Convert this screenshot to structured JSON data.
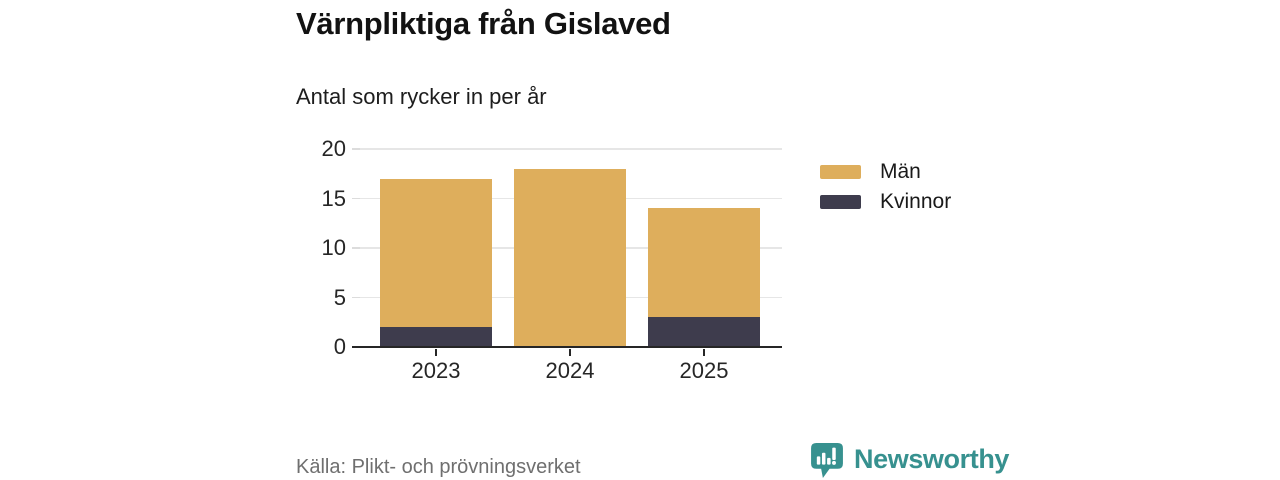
{
  "title": "Värnpliktiga från Gislaved",
  "subtitle": "Antal som rycker in per år",
  "source": "Källa: Plikt- och prövningsverket",
  "brand": {
    "name": "Newsworthy",
    "color": "#37918f",
    "icon": "newsworthy-speech-bubble-bar-chart-icon"
  },
  "colors": {
    "grid": "#e6e6e6",
    "axis": "#262626",
    "tick": "#dcdcdc",
    "source_text": "#6f6f6f"
  },
  "chart_data": {
    "type": "bar",
    "stacked": true,
    "title": "Värnpliktiga från Gislaved",
    "subtitle": "Antal som rycker in per år",
    "xlabel": "",
    "ylabel": "",
    "categories": [
      "2023",
      "2024",
      "2025"
    ],
    "series": [
      {
        "name": "Män",
        "color": "#deae5c",
        "values": [
          15,
          18,
          11
        ]
      },
      {
        "name": "Kvinnor",
        "color": "#3e3c4d",
        "values": [
          2,
          0,
          3
        ]
      }
    ],
    "totals": [
      17,
      18,
      14
    ],
    "ylim": [
      0,
      20
    ],
    "yticks": [
      0,
      5,
      10,
      15,
      20
    ],
    "grid": true,
    "legend_position": "right"
  }
}
